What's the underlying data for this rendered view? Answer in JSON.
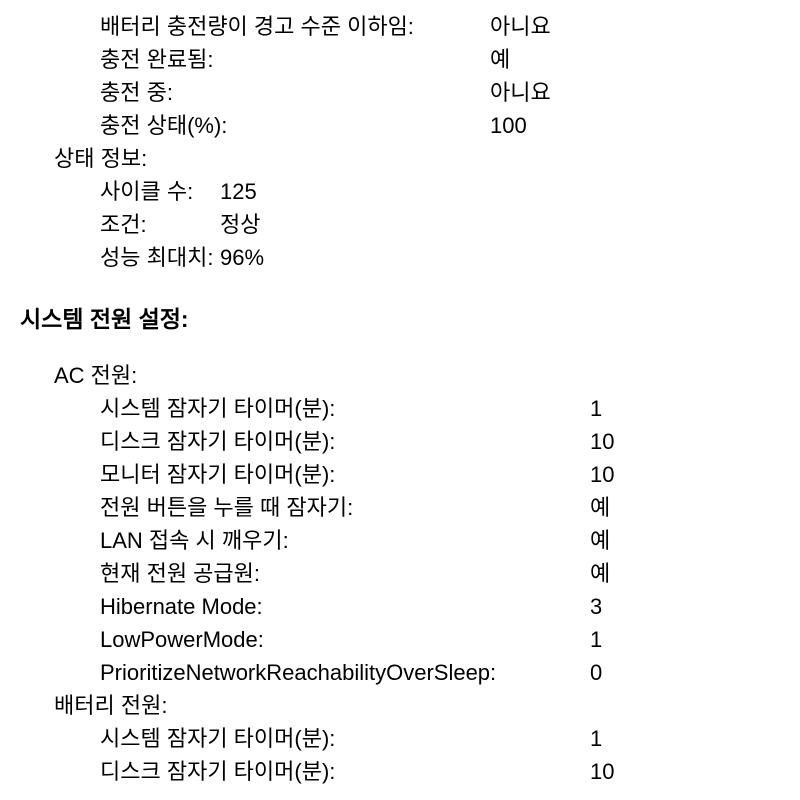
{
  "battery_charge_info": {
    "below_warning_level": {
      "label": "배터리 충전량이 경고 수준 이하임:",
      "value": "아니요"
    },
    "fully_charged": {
      "label": "충전 완료됨:",
      "value": "예"
    },
    "charging": {
      "label": "충전 중:",
      "value": "아니요"
    },
    "charge_state_percent": {
      "label": "충전 상태(%):",
      "value": "100"
    }
  },
  "health_info": {
    "heading": "상태 정보:",
    "cycle_count": {
      "label": "사이클 수:",
      "value": "125"
    },
    "condition": {
      "label": "조건:",
      "value": "정상"
    },
    "max_capacity": {
      "label": "성능 최대치:",
      "value": "96%"
    }
  },
  "system_power_settings": {
    "heading": "시스템 전원 설정:",
    "ac_power": {
      "heading": "AC 전원:",
      "system_sleep_timer": {
        "label": "시스템 잠자기 타이머(분):",
        "value": "1"
      },
      "disk_sleep_timer": {
        "label": "디스크 잠자기 타이머(분):",
        "value": "10"
      },
      "display_sleep_timer": {
        "label": "모니터 잠자기 타이머(분):",
        "value": "10"
      },
      "sleep_on_power_button": {
        "label": "전원 버튼을 누를 때 잠자기:",
        "value": "예"
      },
      "wake_on_lan": {
        "label": "LAN 접속 시 깨우기:",
        "value": "예"
      },
      "current_power_source": {
        "label": "현재 전원 공급원:",
        "value": "예"
      },
      "hibernate_mode": {
        "label": "Hibernate Mode:",
        "value": "3"
      },
      "low_power_mode": {
        "label": "LowPowerMode:",
        "value": "1"
      },
      "prioritize_network": {
        "label": "PrioritizeNetworkReachabilityOverSleep:",
        "value": "0"
      }
    },
    "battery_power": {
      "heading": "배터리 전원:",
      "system_sleep_timer": {
        "label": "시스템 잠자기 타이머(분):",
        "value": "1"
      },
      "disk_sleep_timer": {
        "label": "디스크 잠자기 타이머(분):",
        "value": "10"
      }
    }
  }
}
